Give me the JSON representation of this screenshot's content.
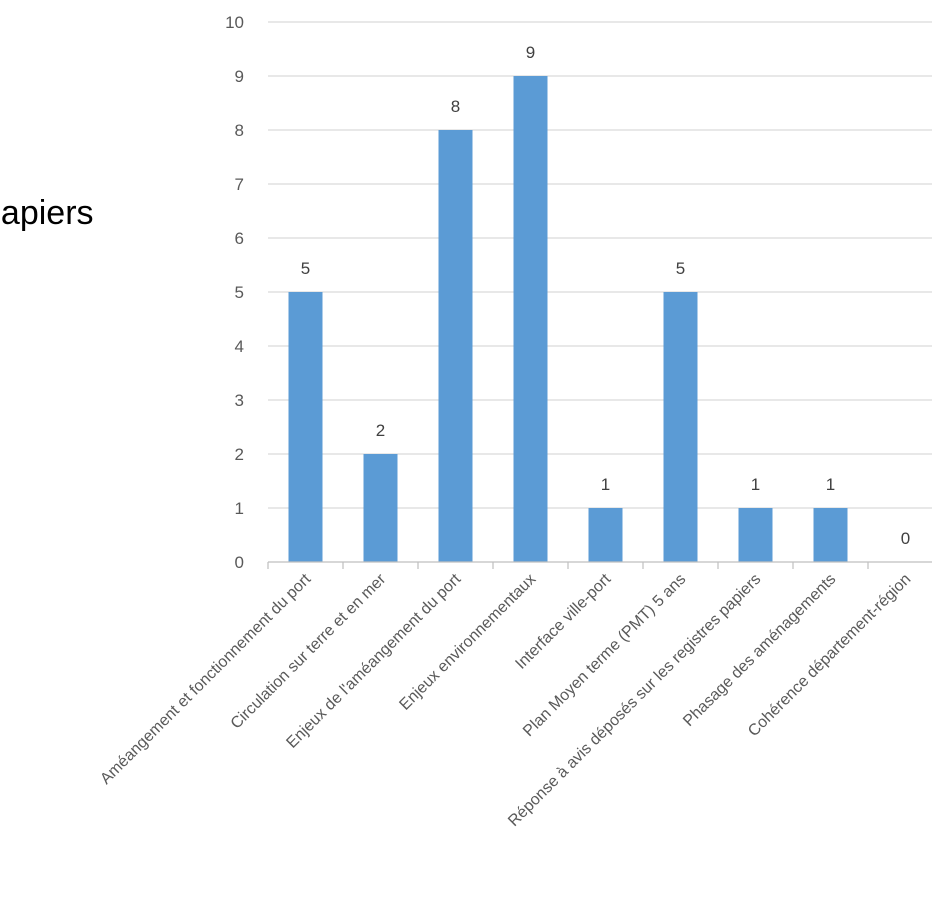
{
  "page": {
    "title_fragment": "papiers"
  },
  "chart_data": {
    "type": "bar",
    "categories": [
      "Améangement et fonctionnement du port",
      "Circulation sur terre et en mer",
      "Enjeux de l'améangement du port",
      "Enjeux environnementaux",
      "Interface ville-port",
      "Plan Moyen terme (PMT) 5 ans",
      "Réponse à avis déposés sur les registres papiers",
      "Phasage des aménagements",
      "Cohérence département-région"
    ],
    "values": [
      5,
      2,
      8,
      9,
      1,
      5,
      1,
      1,
      0
    ],
    "ylim": [
      0,
      10
    ],
    "yticks": [
      "0",
      "1",
      "2",
      "3",
      "4",
      "5",
      "6",
      "7",
      "8",
      "9",
      "10"
    ],
    "grid": true,
    "data_labels": true,
    "bar_color": "#5B9BD5",
    "grid_color": "#D9D9D9",
    "axis_color": "#BFBFBF"
  }
}
